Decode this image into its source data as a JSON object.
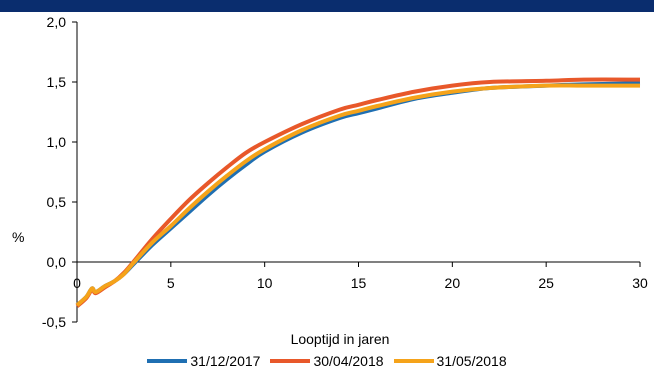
{
  "header": {
    "title": ""
  },
  "chart_data": {
    "type": "line",
    "title": "",
    "xlabel": "Looptijd in jaren",
    "ylabel": "%",
    "xlim": [
      0,
      30
    ],
    "ylim": [
      -0.5,
      2.0
    ],
    "xticks": [
      0,
      5,
      10,
      15,
      20,
      25,
      30
    ],
    "yticks": [
      -0.5,
      0.0,
      0.5,
      1.0,
      1.5,
      2.0
    ],
    "xtick_labels": [
      "0",
      "5",
      "10",
      "15",
      "20",
      "25",
      "30"
    ],
    "ytick_labels": [
      "-0,5",
      "0,0",
      "0,5",
      "1,0",
      "1,5",
      "2,0"
    ],
    "grid": false,
    "legend_position": "bottom",
    "x": [
      0,
      0.5,
      0.8,
      1,
      1.5,
      2,
      2.5,
      3,
      4,
      5,
      6,
      7,
      8,
      9,
      10,
      12,
      14,
      15,
      16,
      18,
      20,
      22,
      25,
      27,
      30
    ],
    "series": [
      {
        "name": "31/12/2017",
        "color": "#1f6fb2",
        "values": [
          -0.36,
          -0.29,
          -0.22,
          -0.25,
          -0.2,
          -0.16,
          -0.1,
          -0.02,
          0.14,
          0.28,
          0.42,
          0.56,
          0.69,
          0.81,
          0.92,
          1.08,
          1.2,
          1.24,
          1.28,
          1.36,
          1.41,
          1.45,
          1.47,
          1.48,
          1.49
        ]
      },
      {
        "name": "30/04/2018",
        "color": "#e8582a",
        "values": [
          -0.37,
          -0.3,
          -0.23,
          -0.26,
          -0.21,
          -0.16,
          -0.09,
          0.0,
          0.19,
          0.36,
          0.52,
          0.66,
          0.79,
          0.91,
          1.0,
          1.15,
          1.27,
          1.31,
          1.35,
          1.42,
          1.47,
          1.5,
          1.51,
          1.52,
          1.52
        ]
      },
      {
        "name": "31/05/2018",
        "color": "#f5a31a",
        "values": [
          -0.36,
          -0.29,
          -0.22,
          -0.25,
          -0.2,
          -0.16,
          -0.1,
          -0.01,
          0.16,
          0.3,
          0.45,
          0.59,
          0.72,
          0.84,
          0.94,
          1.1,
          1.22,
          1.26,
          1.3,
          1.37,
          1.42,
          1.45,
          1.47,
          1.47,
          1.47
        ]
      }
    ]
  }
}
